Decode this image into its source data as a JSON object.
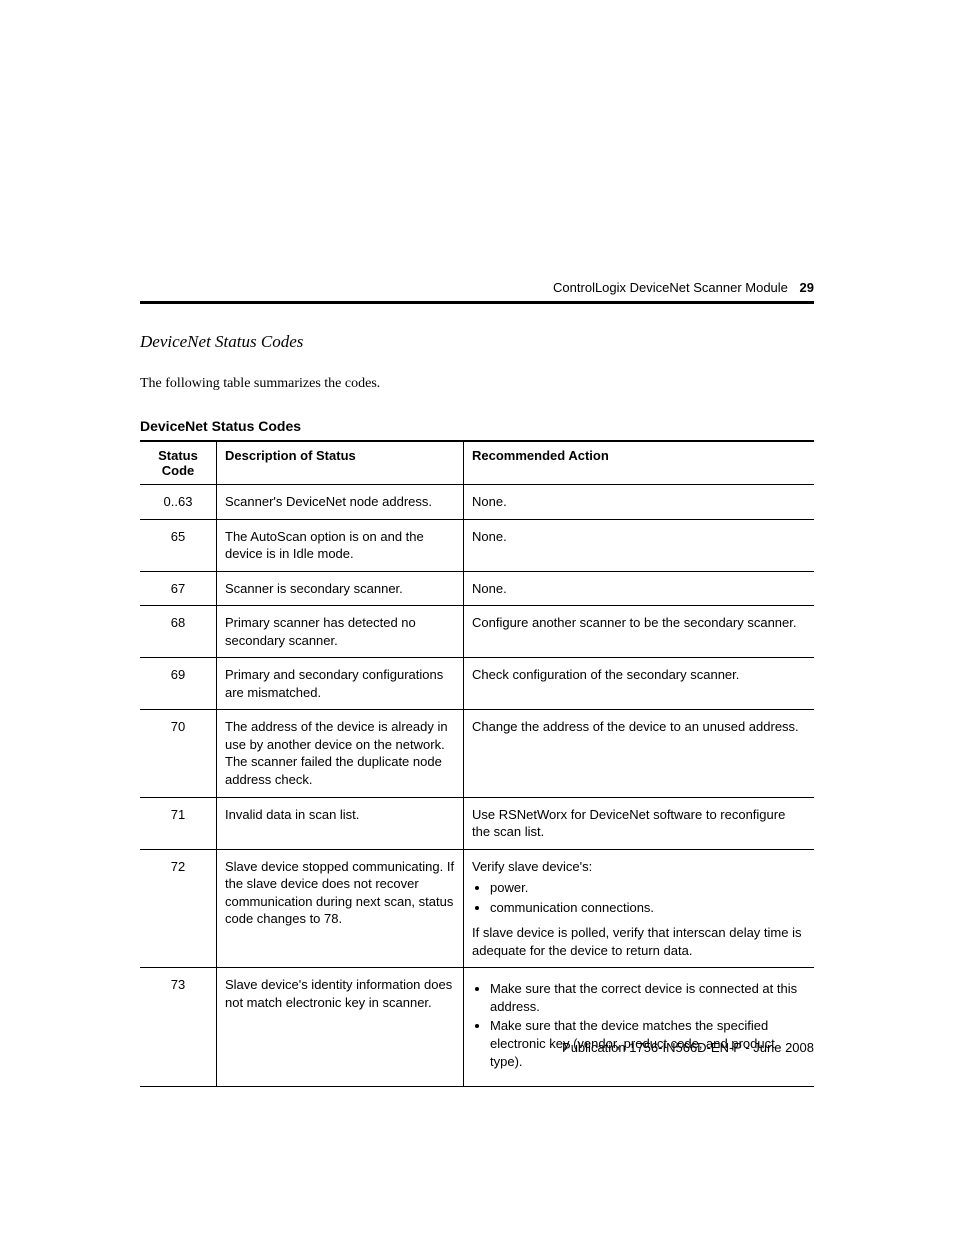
{
  "pageHeader": {
    "docTitle": "ControlLogix DeviceNet Scanner Module",
    "pageNumber": "29"
  },
  "sectionTitle": "DeviceNet Status Codes",
  "introText": "The following table summarizes the codes.",
  "tableCaption": "DeviceNet Status Codes",
  "tableHeaders": {
    "code": "Status Code",
    "desc": "Description of Status",
    "action": "Recommended Action"
  },
  "rows": {
    "r0": {
      "code": "0..63",
      "desc": "Scanner's DeviceNet node address.",
      "actionPlain": "None."
    },
    "r1": {
      "code": "65",
      "desc": "The AutoScan option is on and the device is in Idle mode.",
      "actionPlain": "None."
    },
    "r2": {
      "code": "67",
      "desc": "Scanner is secondary scanner.",
      "actionPlain": "None."
    },
    "r3": {
      "code": "68",
      "desc": "Primary scanner has detected no secondary scanner.",
      "actionPlain": "Configure another scanner to be the secondary scanner."
    },
    "r4": {
      "code": "69",
      "desc": "Primary and secondary configurations are mismatched.",
      "actionPlain": "Check configuration of the secondary scanner."
    },
    "r5": {
      "code": "70",
      "desc": "The address of the device is already in use by another device on the network. The scanner failed the duplicate node address check.",
      "actionPlain": "Change the address of the device to an unused address."
    },
    "r6": {
      "code": "71",
      "desc": "Invalid data in scan list.",
      "actionPlain": "Use RSNetWorx for DeviceNet software to reconfigure the scan list."
    },
    "r7": {
      "code": "72",
      "desc": "Slave device stopped communicating. If the slave device does not recover communication during next scan, status code changes to 78.",
      "actionIntro": "Verify slave device's:",
      "bullet1": "power.",
      "bullet2": "communication connections.",
      "actionAfter": "If slave device is polled, verify that interscan delay time is adequate for the device to return data."
    },
    "r8": {
      "code": "73",
      "desc": "Slave device's identity information does not match electronic key in scanner.",
      "bullet1": "Make sure that the correct device is connected at this address.",
      "bullet2": "Make sure that the device matches the specified electronic key (vendor, product code, and product type)."
    }
  },
  "publication": "Publication 1756-IN566D-EN-P - June 2008",
  "style": {
    "pageWidth": 954,
    "pageHeight": 1235,
    "background": "#ffffff",
    "textColor": "#000000",
    "ruleColor": "#000000",
    "headerFontSize": 13,
    "sectionTitleFontSize": 17,
    "introFontSize": 14,
    "tableCaptionFontSize": 14,
    "tableFontSize": 13,
    "codeColWidth": 60,
    "descColWidth": 230,
    "headerRuleHeight": 3,
    "cellBorderWidth": 1,
    "topBorderWidth": 2
  }
}
